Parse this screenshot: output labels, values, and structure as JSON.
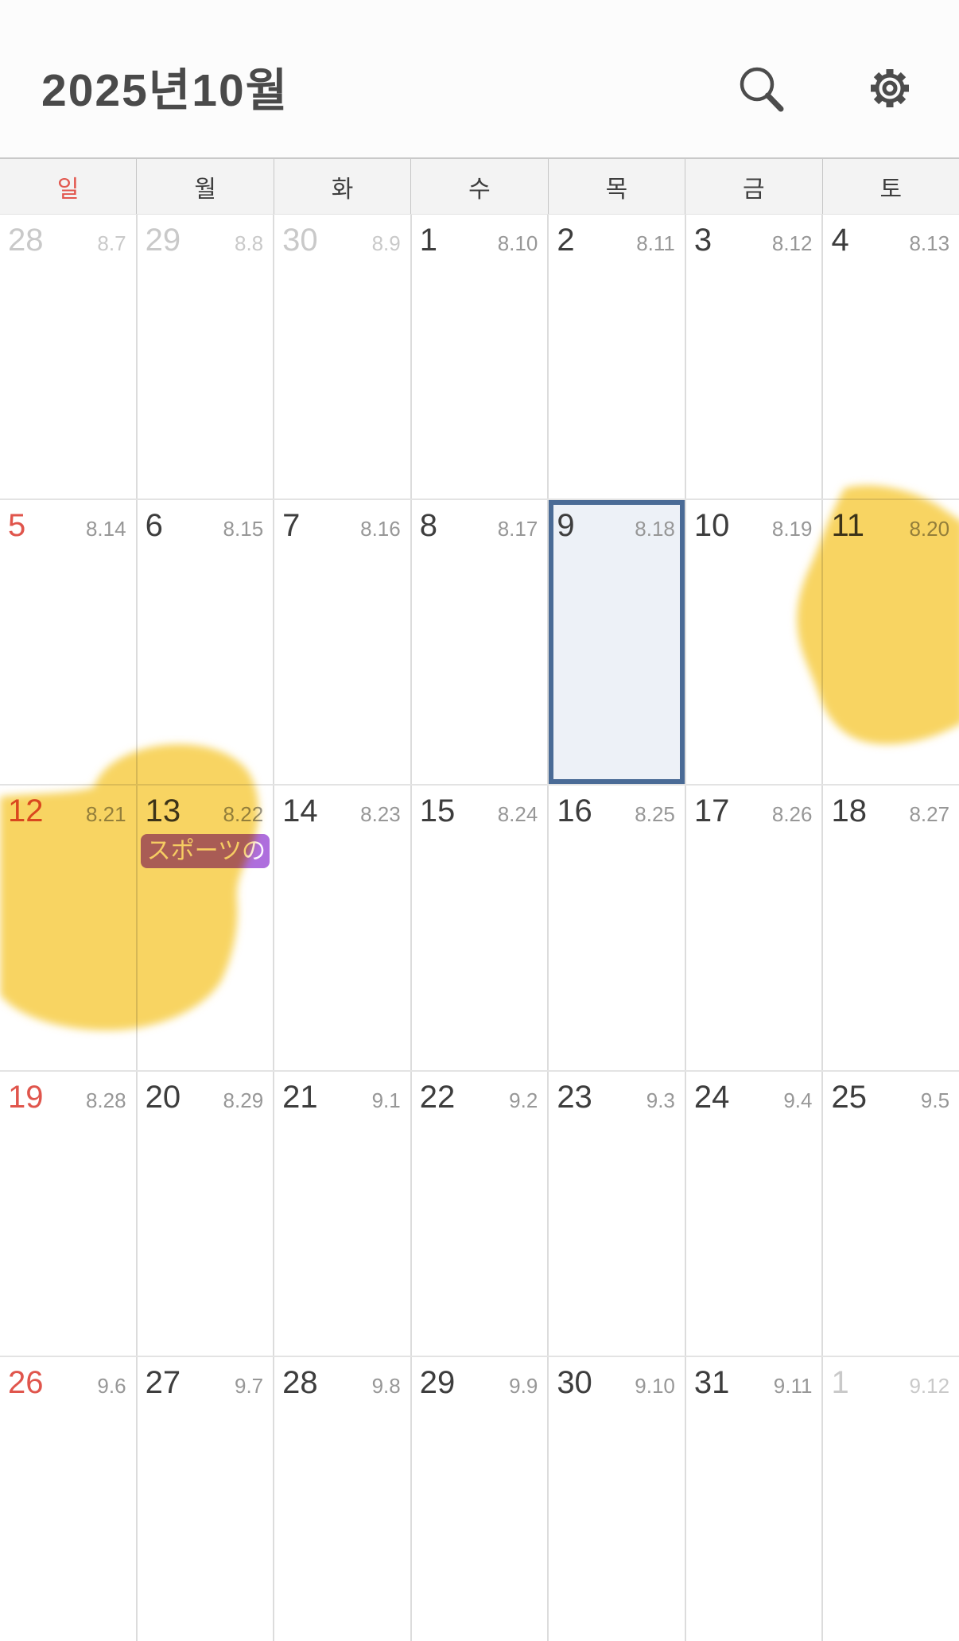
{
  "app": {
    "title": "2025년10월"
  },
  "toolbar": {
    "search_icon": "search-magnifier",
    "settings_icon": "settings-gear"
  },
  "day_headers": [
    {
      "label": "일",
      "sunday": true
    },
    {
      "label": "월",
      "sunday": false
    },
    {
      "label": "화",
      "sunday": false
    },
    {
      "label": "수",
      "sunday": false
    },
    {
      "label": "목",
      "sunday": false
    },
    {
      "label": "금",
      "sunday": false
    },
    {
      "label": "토",
      "sunday": false
    }
  ],
  "calendar": {
    "selected_date": "9",
    "weeks": [
      [
        {
          "day": "28",
          "lunar": "8.7",
          "muted": true
        },
        {
          "day": "29",
          "lunar": "8.8",
          "muted": true
        },
        {
          "day": "30",
          "lunar": "8.9",
          "muted": true
        },
        {
          "day": "1",
          "lunar": "8.10"
        },
        {
          "day": "2",
          "lunar": "8.11"
        },
        {
          "day": "3",
          "lunar": "8.12"
        },
        {
          "day": "4",
          "lunar": "8.13"
        }
      ],
      [
        {
          "day": "5",
          "lunar": "8.14",
          "sunday": true
        },
        {
          "day": "6",
          "lunar": "8.15"
        },
        {
          "day": "7",
          "lunar": "8.16"
        },
        {
          "day": "8",
          "lunar": "8.17"
        },
        {
          "day": "9",
          "lunar": "8.18",
          "selected": true
        },
        {
          "day": "10",
          "lunar": "8.19"
        },
        {
          "day": "11",
          "lunar": "8.20"
        }
      ],
      [
        {
          "day": "12",
          "lunar": "8.21",
          "sunday": true
        },
        {
          "day": "13",
          "lunar": "8.22",
          "event": {
            "label": "スポーツの",
            "color": "#ae6edd"
          }
        },
        {
          "day": "14",
          "lunar": "8.23"
        },
        {
          "day": "15",
          "lunar": "8.24"
        },
        {
          "day": "16",
          "lunar": "8.25"
        },
        {
          "day": "17",
          "lunar": "8.26"
        },
        {
          "day": "18",
          "lunar": "8.27"
        }
      ],
      [
        {
          "day": "19",
          "lunar": "8.28",
          "sunday": true
        },
        {
          "day": "20",
          "lunar": "8.29"
        },
        {
          "day": "21",
          "lunar": "9.1"
        },
        {
          "day": "22",
          "lunar": "9.2"
        },
        {
          "day": "23",
          "lunar": "9.3"
        },
        {
          "day": "24",
          "lunar": "9.4"
        },
        {
          "day": "25",
          "lunar": "9.5"
        }
      ],
      [
        {
          "day": "26",
          "lunar": "9.6",
          "sunday": true
        },
        {
          "day": "27",
          "lunar": "9.7"
        },
        {
          "day": "28",
          "lunar": "9.8"
        },
        {
          "day": "29",
          "lunar": "9.9"
        },
        {
          "day": "30",
          "lunar": "9.10"
        },
        {
          "day": "31",
          "lunar": "9.11"
        },
        {
          "day": "1",
          "lunar": "9.12",
          "muted": true
        }
      ]
    ]
  },
  "colors": {
    "sunday_red": "#e0554c",
    "selected_border": "#4a6b96",
    "selected_fill": "#edf1f7",
    "event_purple": "#ae6edd",
    "highlighter_yellow": "#f8d155",
    "dow_background": "#f3f3f3",
    "grid_line": "#dcdcdc"
  }
}
